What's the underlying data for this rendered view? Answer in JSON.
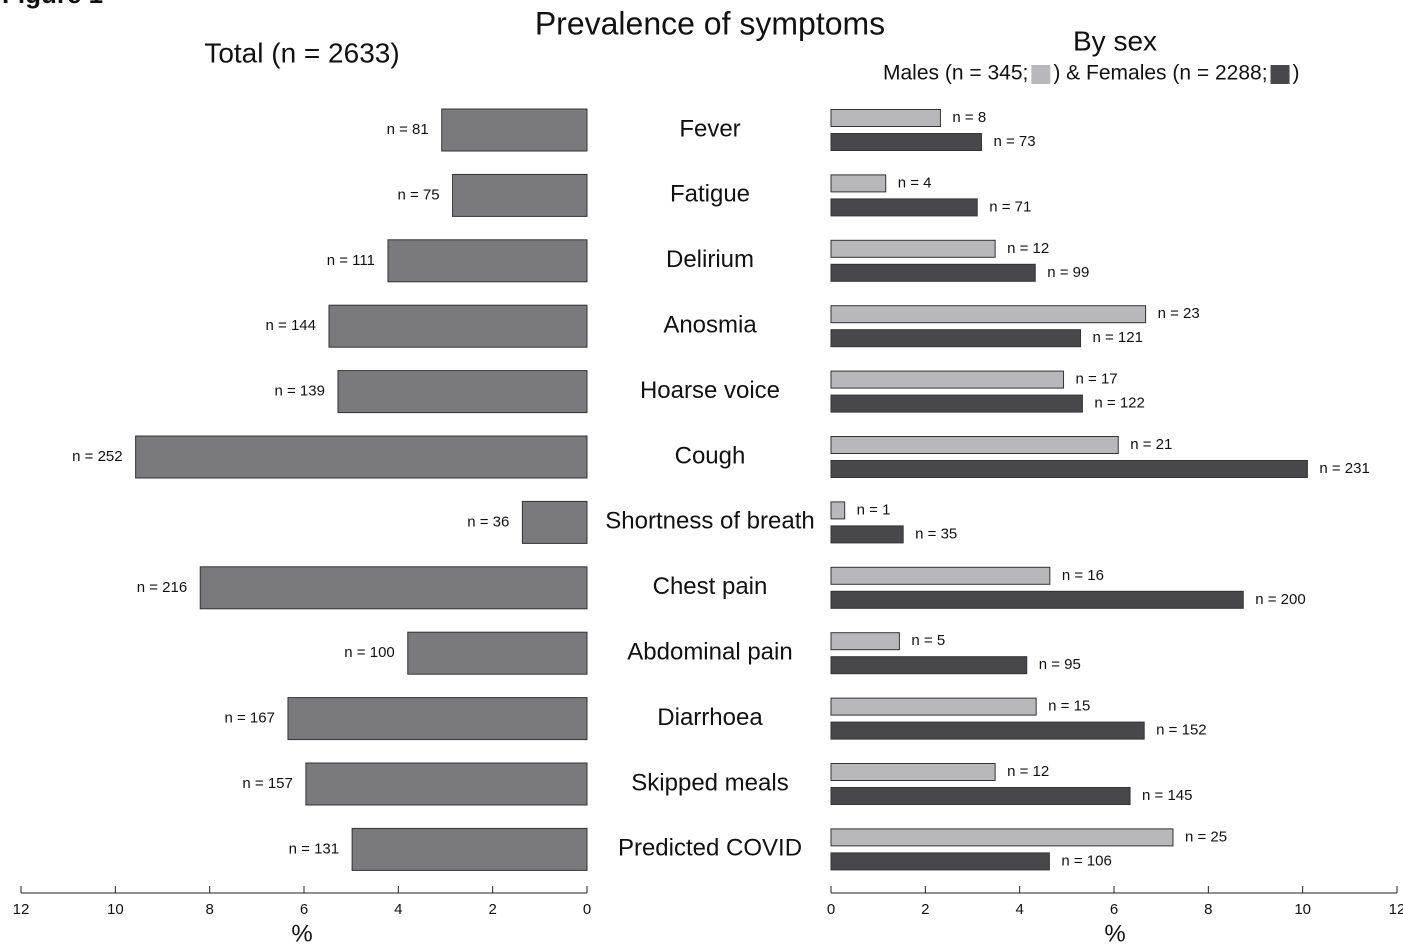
{
  "figure_label": "Figure 1",
  "title": "Prevalence of symptoms",
  "chart_data": [
    {
      "type": "hbar",
      "title": "Total (n = 2633)",
      "categories": [
        "Fever",
        "Fatigue",
        "Delirium",
        "Anosmia",
        "Hoarse voice",
        "Cough",
        "Shortness of breath",
        "Chest pain",
        "Abdominal pain",
        "Diarrhoea",
        "Skipped meals",
        "Predicted COVID"
      ],
      "values": [
        3.08,
        2.85,
        4.22,
        5.47,
        5.28,
        9.57,
        1.37,
        8.2,
        3.8,
        6.34,
        5.96,
        4.98
      ],
      "value_labels": [
        "n = 81",
        "n = 75",
        "n = 111",
        "n = 144",
        "n = 139",
        "n = 252",
        "n = 36",
        "n = 216",
        "n = 100",
        "n = 167",
        "n = 157",
        "n = 131"
      ],
      "color": "#7a797e",
      "xlim": [
        12,
        0
      ],
      "xticks": [
        0,
        2,
        4,
        6,
        8,
        10,
        12
      ],
      "xlabel": "%"
    },
    {
      "type": "grouped-hbar",
      "title": "By sex",
      "legend_close": ")",
      "series": [
        {
          "name": "Males (n = 345;",
          "color": "#b8b7bb",
          "values": [
            2.32,
            1.16,
            3.48,
            6.67,
            4.93,
            6.09,
            0.29,
            4.64,
            1.45,
            4.35,
            3.48,
            7.25
          ],
          "value_labels": [
            "n = 8",
            "n = 4",
            "n = 12",
            "n = 23",
            "n = 17",
            "n = 21",
            "n = 1",
            "n = 16",
            "n = 5",
            "n = 15",
            "n = 12",
            "n = 25"
          ]
        },
        {
          "name": ") & Females (n = 2288;",
          "color": "#48474c",
          "values": [
            3.19,
            3.1,
            4.33,
            5.29,
            5.33,
            10.1,
            1.53,
            8.74,
            4.15,
            6.64,
            6.34,
            4.63
          ],
          "value_labels": [
            "n = 73",
            "n = 71",
            "n = 99",
            "n = 121",
            "n = 122",
            "n = 231",
            "n = 35",
            "n = 200",
            "n = 95",
            "n = 152",
            "n = 145",
            "n = 106"
          ]
        }
      ],
      "xlim": [
        0,
        12
      ],
      "xticks": [
        0,
        2,
        4,
        6,
        8,
        10,
        12
      ],
      "xlabel": "%"
    }
  ]
}
